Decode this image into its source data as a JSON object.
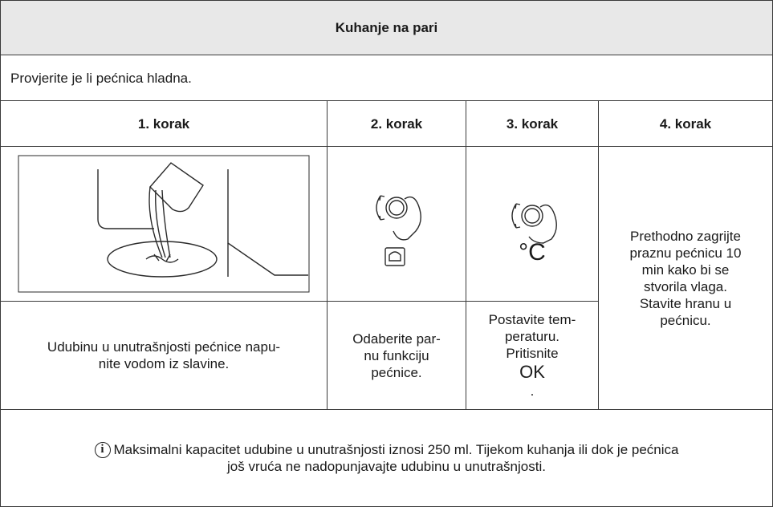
{
  "title": "Kuhanje na pari",
  "instruction": "Provjerite je li pećnica hladna.",
  "steps": [
    {
      "header": "1. korak",
      "text": [
        "Udubinu u unutrašnjosti pećnice napu-",
        "nite vodom iz slavine."
      ]
    },
    {
      "header": "2. korak",
      "text": [
        "Odaberite par-",
        "nu funkciju",
        "pećnice."
      ]
    },
    {
      "header": "3. korak",
      "symbol": "°C",
      "text": [
        "Postavite tem-",
        "peraturu.",
        "Pritisnite",
        "OK",
        "."
      ]
    },
    {
      "header": "4. korak",
      "text": [
        "Prethodno zagrijte",
        "praznu pećnicu 10",
        "min kako bi se",
        "stvorila vlaga.",
        "Stavite hranu u",
        "pećnicu."
      ]
    }
  ],
  "note": {
    "icon": "i",
    "text": [
      "Maksimalni kapacitet udubine u unutrašnjosti iznosi 250 ml. Tijekom kuhanja ili dok je pećnica",
      "još vruća ne nadopunjavajte udubinu u unutrašnjosti."
    ]
  }
}
